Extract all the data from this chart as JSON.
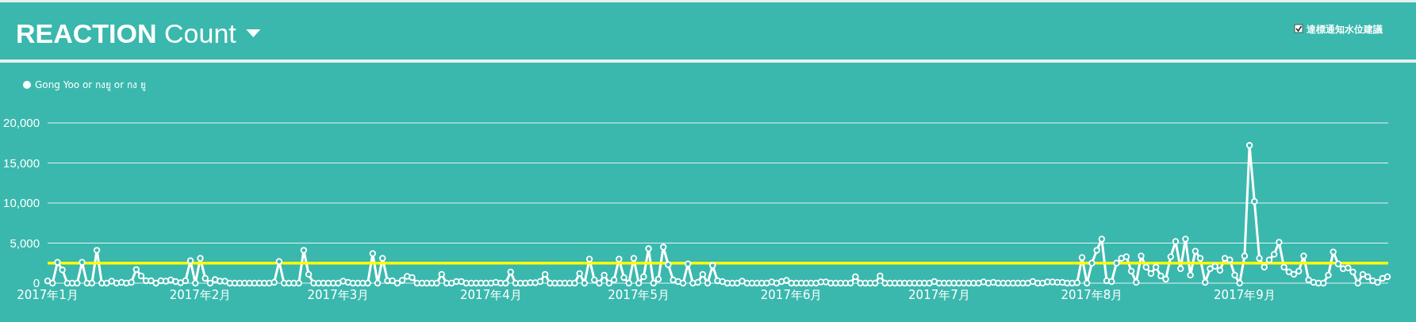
{
  "chart_data": {
    "type": "line",
    "title": "**REACTION** Count",
    "annotations": [
      "達標通知水位建議"
    ],
    "legend": "top left",
    "grid": "y",
    "marker": "circle",
    "line_style": "solid",
    "xlim": [
      "2017-01-01",
      "2017-09-30"
    ],
    "xticks": [
      {
        "value": "2017-01-01",
        "label": "2017年1月"
      },
      {
        "value": "2017-02-01",
        "label": "2017年2月"
      },
      {
        "value": "2017-03-01",
        "label": "2017年3月"
      },
      {
        "value": "2017-04-01",
        "label": "2017年4月"
      },
      {
        "value": "2017-05-01",
        "label": "2017年5月"
      },
      {
        "value": "2017-06-01",
        "label": "2017年6月"
      },
      {
        "value": "2017-07-01",
        "label": "2017年7月"
      },
      {
        "value": "2017-08-01",
        "label": "2017年8月"
      },
      {
        "value": "2017-09-01",
        "label": "2017年9月"
      }
    ],
    "ylim": [
      0,
      20000
    ],
    "yticks": [
      0,
      {
        "value": 5000,
        "label": "5,000"
      },
      {
        "value": 10000,
        "label": "10,000"
      },
      {
        "value": 15000,
        "label": "15,000"
      },
      {
        "value": 20000,
        "label": "20,000"
      }
    ],
    "ref_lines": [
      {
        "axis": "y",
        "value": 2500,
        "color": "#ffff00"
      }
    ],
    "x": [
      "2017-01-01",
      "2017-01-02",
      "2017-01-03",
      "2017-01-04",
      "2017-01-05",
      "2017-01-06",
      "2017-01-07",
      "2017-01-08",
      "2017-01-09",
      "2017-01-10",
      "2017-01-11",
      "2017-01-12",
      "2017-01-13",
      "2017-01-14",
      "2017-01-15",
      "2017-01-16",
      "2017-01-17",
      "2017-01-18",
      "2017-01-19",
      "2017-01-20",
      "2017-01-21",
      "2017-01-22",
      "2017-01-23",
      "2017-01-24",
      "2017-01-25",
      "2017-01-26",
      "2017-01-27",
      "2017-01-28",
      "2017-01-29",
      "2017-01-30",
      "2017-01-31",
      "2017-02-01",
      "2017-02-02",
      "2017-02-03",
      "2017-02-04",
      "2017-02-05",
      "2017-02-06",
      "2017-02-07",
      "2017-02-08",
      "2017-02-09",
      "2017-02-10",
      "2017-02-11",
      "2017-02-12",
      "2017-02-13",
      "2017-02-14",
      "2017-02-15",
      "2017-02-16",
      "2017-02-17",
      "2017-02-18",
      "2017-02-19",
      "2017-02-20",
      "2017-02-21",
      "2017-02-22",
      "2017-02-23",
      "2017-02-24",
      "2017-02-25",
      "2017-02-26",
      "2017-02-27",
      "2017-02-28",
      "2017-03-01",
      "2017-03-02",
      "2017-03-03",
      "2017-03-04",
      "2017-03-05",
      "2017-03-06",
      "2017-03-07",
      "2017-03-08",
      "2017-03-09",
      "2017-03-10",
      "2017-03-11",
      "2017-03-12",
      "2017-03-13",
      "2017-03-14",
      "2017-03-15",
      "2017-03-16",
      "2017-03-17",
      "2017-03-18",
      "2017-03-19",
      "2017-03-20",
      "2017-03-21",
      "2017-03-22",
      "2017-03-23",
      "2017-03-24",
      "2017-03-25",
      "2017-03-26",
      "2017-03-27",
      "2017-03-28",
      "2017-03-29",
      "2017-03-30",
      "2017-03-31",
      "2017-04-01",
      "2017-04-02",
      "2017-04-03",
      "2017-04-04",
      "2017-04-05",
      "2017-04-06",
      "2017-04-07",
      "2017-04-08",
      "2017-04-09",
      "2017-04-10",
      "2017-04-11",
      "2017-04-12",
      "2017-04-13",
      "2017-04-14",
      "2017-04-15",
      "2017-04-16",
      "2017-04-17",
      "2017-04-18",
      "2017-04-19",
      "2017-04-20",
      "2017-04-21",
      "2017-04-22",
      "2017-04-23",
      "2017-04-24",
      "2017-04-25",
      "2017-04-26",
      "2017-04-27",
      "2017-04-28",
      "2017-04-29",
      "2017-04-30",
      "2017-05-01",
      "2017-05-02",
      "2017-05-03",
      "2017-05-04",
      "2017-05-05",
      "2017-05-06",
      "2017-05-07",
      "2017-05-08",
      "2017-05-09",
      "2017-05-10",
      "2017-05-11",
      "2017-05-12",
      "2017-05-13",
      "2017-05-14",
      "2017-05-15",
      "2017-05-16",
      "2017-05-17",
      "2017-05-18",
      "2017-05-19",
      "2017-05-20",
      "2017-05-21",
      "2017-05-22",
      "2017-05-23",
      "2017-05-24",
      "2017-05-25",
      "2017-05-26",
      "2017-05-27",
      "2017-05-28",
      "2017-05-29",
      "2017-05-30",
      "2017-05-31",
      "2017-06-01",
      "2017-06-02",
      "2017-06-03",
      "2017-06-04",
      "2017-06-05",
      "2017-06-06",
      "2017-06-07",
      "2017-06-08",
      "2017-06-09",
      "2017-06-10",
      "2017-06-11",
      "2017-06-12",
      "2017-06-13",
      "2017-06-14",
      "2017-06-15",
      "2017-06-16",
      "2017-06-17",
      "2017-06-18",
      "2017-06-19",
      "2017-06-20",
      "2017-06-21",
      "2017-06-22",
      "2017-06-23",
      "2017-06-24",
      "2017-06-25",
      "2017-06-26",
      "2017-06-27",
      "2017-06-28",
      "2017-06-29",
      "2017-06-30",
      "2017-07-01",
      "2017-07-02",
      "2017-07-03",
      "2017-07-04",
      "2017-07-05",
      "2017-07-06",
      "2017-07-07",
      "2017-07-08",
      "2017-07-09",
      "2017-07-10",
      "2017-07-11",
      "2017-07-12",
      "2017-07-13",
      "2017-07-14",
      "2017-07-15",
      "2017-07-16",
      "2017-07-17",
      "2017-07-18",
      "2017-07-19",
      "2017-07-20",
      "2017-07-21",
      "2017-07-22",
      "2017-07-23",
      "2017-07-24",
      "2017-07-25",
      "2017-07-26",
      "2017-07-27",
      "2017-07-28",
      "2017-07-29",
      "2017-07-30",
      "2017-07-31",
      "2017-08-01",
      "2017-08-02",
      "2017-08-03",
      "2017-08-04",
      "2017-08-05",
      "2017-08-06",
      "2017-08-07",
      "2017-08-08",
      "2017-08-09",
      "2017-08-10",
      "2017-08-11",
      "2017-08-12",
      "2017-08-13",
      "2017-08-14",
      "2017-08-15",
      "2017-08-16",
      "2017-08-17",
      "2017-08-18",
      "2017-08-19",
      "2017-08-20",
      "2017-08-21",
      "2017-08-22",
      "2017-08-23",
      "2017-08-24",
      "2017-08-25",
      "2017-08-26",
      "2017-08-27",
      "2017-08-28",
      "2017-08-29",
      "2017-08-30",
      "2017-08-31",
      "2017-09-01",
      "2017-09-02",
      "2017-09-03",
      "2017-09-04",
      "2017-09-05",
      "2017-09-06",
      "2017-09-07",
      "2017-09-08",
      "2017-09-09",
      "2017-09-10",
      "2017-09-11",
      "2017-09-12",
      "2017-09-13",
      "2017-09-14",
      "2017-09-15",
      "2017-09-16",
      "2017-09-17",
      "2017-09-18",
      "2017-09-19",
      "2017-09-20",
      "2017-09-21",
      "2017-09-22",
      "2017-09-23",
      "2017-09-24",
      "2017-09-25",
      "2017-09-26",
      "2017-09-27",
      "2017-09-28",
      "2017-09-29",
      "2017-09-30"
    ],
    "series": [
      {
        "name": "Gong Yoo or กงยู or กง ยู",
        "color": "#ffffff",
        "values": [
          280,
          0,
          2600,
          1650,
          0,
          0,
          0,
          2600,
          0,
          0,
          4100,
          0,
          0,
          250,
          0,
          100,
          0,
          100,
          1700,
          900,
          300,
          300,
          0,
          300,
          250,
          400,
          200,
          50,
          300,
          2800,
          0,
          3100,
          600,
          0,
          450,
          250,
          250,
          0,
          0,
          0,
          0,
          0,
          0,
          0,
          0,
          0,
          100,
          2700,
          0,
          0,
          0,
          0,
          4100,
          1100,
          0,
          0,
          0,
          0,
          0,
          0,
          250,
          100,
          0,
          0,
          0,
          0,
          3700,
          0,
          3100,
          300,
          300,
          0,
          350,
          850,
          700,
          0,
          0,
          0,
          0,
          0,
          1100,
          0,
          0,
          200,
          200,
          0,
          0,
          0,
          0,
          0,
          0,
          100,
          0,
          0,
          1400,
          0,
          0,
          0,
          50,
          50,
          200,
          1100,
          0,
          0,
          0,
          0,
          0,
          0,
          1200,
          0,
          3000,
          400,
          0,
          1000,
          0,
          400,
          3000,
          700,
          0,
          3100,
          0,
          800,
          4300,
          0,
          500,
          4500,
          2300,
          400,
          200,
          0,
          2400,
          0,
          100,
          1100,
          0,
          2200,
          300,
          200,
          0,
          0,
          0,
          250,
          0,
          0,
          0,
          0,
          0,
          150,
          0,
          200,
          350,
          0,
          0,
          0,
          0,
          0,
          0,
          150,
          150,
          0,
          0,
          0,
          0,
          0,
          800,
          0,
          0,
          0,
          0,
          900,
          0,
          0,
          0,
          0,
          0,
          0,
          0,
          0,
          0,
          0,
          200,
          0,
          0,
          0,
          0,
          0,
          0,
          0,
          0,
          0,
          150,
          0,
          100,
          0,
          0,
          0,
          0,
          0,
          0,
          0,
          200,
          0,
          0,
          150,
          150,
          100,
          100,
          0,
          0,
          50,
          3200,
          0,
          2500,
          4100,
          5500,
          300,
          200,
          2500,
          3100,
          3300,
          1500,
          100,
          3400,
          2000,
          1200,
          2000,
          900,
          500,
          3300,
          5200,
          1800,
          5500,
          1000,
          4000,
          3100,
          100,
          1800,
          2100,
          1600,
          3100,
          2900,
          1000,
          0,
          3400,
          17200,
          10200,
          3100,
          2000,
          2900,
          3600,
          5100,
          2000,
          1400,
          1100,
          1500,
          3400,
          400,
          100,
          0,
          0,
          1000,
          3900,
          2400,
          1800,
          1900,
          1400,
          0,
          1100,
          800,
          300,
          100,
          600,
          800
        ]
      }
    ]
  }
}
